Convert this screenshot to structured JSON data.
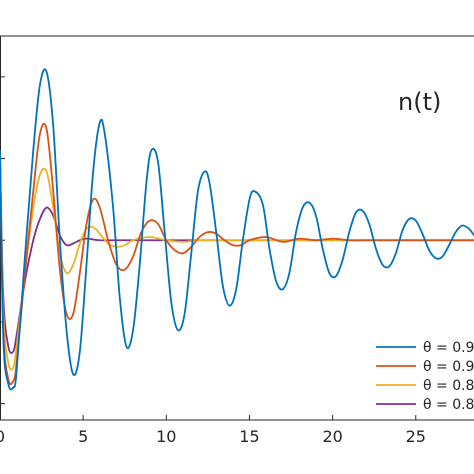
{
  "chart_data": {
    "type": "line",
    "title": "",
    "annotation": "n(t)",
    "xlabel": "",
    "ylabel": "",
    "xlim": [
      0,
      28.5
    ],
    "ylim": [
      -1.1,
      1.25
    ],
    "x_ticks": [
      0,
      5,
      10,
      15,
      20,
      25
    ],
    "x_tick_labels": [
      "0",
      "5",
      "10",
      "15",
      "20",
      "25"
    ],
    "grid": false,
    "legend_placement": "bottom-right",
    "series": [
      {
        "name": "θ = 0.9",
        "color": "#0072BD",
        "x": [
          0,
          0.2,
          0.5,
          0.8,
          1.0,
          1.5,
          2.0,
          2.4,
          2.8,
          3.2,
          3.6,
          4.0,
          4.4,
          4.8,
          5.2,
          5.6,
          6.0,
          6.3,
          6.8,
          7.2,
          7.6,
          8.0,
          8.4,
          8.8,
          9.1,
          9.5,
          9.9,
          10.3,
          10.7,
          11.1,
          11.5,
          11.9,
          12.3,
          12.6,
          13.0,
          13.4,
          13.8,
          14.2,
          14.6,
          15.0,
          15.3,
          15.8,
          16.2,
          16.6,
          17.0,
          17.4,
          17.8,
          18.2,
          18.6,
          19.0,
          19.4,
          19.8,
          20.2,
          20.6,
          21.0,
          21.4,
          21.8,
          22.2,
          22.6,
          23.0,
          23.4,
          23.8,
          24.2,
          24.6,
          25.0,
          25.4,
          25.8,
          26.2,
          26.6,
          27.0,
          27.4,
          27.8,
          28.2,
          28.5
        ],
        "values": [
          0.55,
          -0.6,
          -0.88,
          -0.9,
          -0.8,
          -0.1,
          0.55,
          0.95,
          1.03,
          0.7,
          0.0,
          -0.55,
          -0.82,
          -0.68,
          -0.15,
          0.42,
          0.72,
          0.65,
          0.2,
          -0.35,
          -0.65,
          -0.55,
          -0.15,
          0.35,
          0.55,
          0.48,
          0.05,
          -0.38,
          -0.55,
          -0.45,
          -0.08,
          0.3,
          0.42,
          0.35,
          0.05,
          -0.28,
          -0.4,
          -0.3,
          0.0,
          0.25,
          0.3,
          0.22,
          -0.05,
          -0.25,
          -0.3,
          -0.2,
          0.05,
          0.2,
          0.23,
          0.15,
          -0.05,
          -0.2,
          -0.22,
          -0.12,
          0.05,
          0.17,
          0.18,
          0.1,
          -0.05,
          -0.15,
          -0.16,
          -0.08,
          0.06,
          0.13,
          0.12,
          0.04,
          -0.06,
          -0.11,
          -0.1,
          -0.03,
          0.05,
          0.09,
          0.07,
          0.03
        ]
      },
      {
        "name": "θ = 0.9",
        "color": "#D95319",
        "x": [
          0,
          0.2,
          0.5,
          0.8,
          1.0,
          1.5,
          2.0,
          2.4,
          2.8,
          3.2,
          3.6,
          4.0,
          4.4,
          4.8,
          5.2,
          5.6,
          6.0,
          6.5,
          7.0,
          7.5,
          8.0,
          8.5,
          9.0,
          9.5,
          10.0,
          10.5,
          11.0,
          11.5,
          12.0,
          12.5,
          13.0,
          13.5,
          14.0,
          14.5,
          15.0,
          16.0,
          17.0,
          18.0,
          19.0,
          20.0,
          21.0,
          22.0,
          23.0,
          24.0,
          25.0,
          26.0,
          27.0,
          28.5
        ],
        "values": [
          0.55,
          -0.55,
          -0.85,
          -0.86,
          -0.75,
          -0.2,
          0.3,
          0.65,
          0.68,
          0.3,
          -0.18,
          -0.45,
          -0.45,
          -0.2,
          0.1,
          0.25,
          0.2,
          0.0,
          -0.15,
          -0.18,
          -0.1,
          0.05,
          0.12,
          0.1,
          0.0,
          -0.06,
          -0.08,
          -0.04,
          0.02,
          0.05,
          0.04,
          0.0,
          -0.03,
          -0.03,
          0.0,
          0.02,
          -0.01,
          0.01,
          0.0,
          0.01,
          0.0,
          0.0,
          0.0,
          0.0,
          0.0,
          0.0,
          0.0,
          0.0
        ]
      },
      {
        "name": "θ = 0.8",
        "color": "#EDB120",
        "x": [
          0,
          0.2,
          0.5,
          0.8,
          1.0,
          1.5,
          2.0,
          2.4,
          2.8,
          3.2,
          3.6,
          4.0,
          4.4,
          4.8,
          5.2,
          5.6,
          6.0,
          6.5,
          7.0,
          7.5,
          8.0,
          9.0,
          10.0,
          11.0,
          12.0,
          14.0,
          16.0,
          20.0,
          24.0,
          28.5
        ],
        "values": [
          0.5,
          -0.45,
          -0.75,
          -0.78,
          -0.65,
          -0.2,
          0.2,
          0.4,
          0.42,
          0.2,
          -0.08,
          -0.2,
          -0.15,
          -0.02,
          0.07,
          0.08,
          0.04,
          -0.02,
          -0.04,
          -0.03,
          0.0,
          0.02,
          0.0,
          -0.01,
          0.0,
          0.0,
          0.0,
          0.0,
          0.0,
          0.0
        ]
      },
      {
        "name": "θ = 0.8",
        "color": "#7E2F8E",
        "x": [
          0,
          0.2,
          0.5,
          0.8,
          1.0,
          1.5,
          2.0,
          2.4,
          2.8,
          3.2,
          3.6,
          4.0,
          4.4,
          4.8,
          5.2,
          6.0,
          7.0,
          8.0,
          10.0,
          12.0,
          16.0,
          20.0,
          24.0,
          28.5
        ],
        "values": [
          0.5,
          -0.35,
          -0.65,
          -0.68,
          -0.58,
          -0.25,
          0.0,
          0.13,
          0.2,
          0.15,
          0.03,
          -0.03,
          -0.02,
          0.0,
          0.01,
          0.0,
          0.0,
          0.0,
          0.0,
          0.0,
          0.0,
          0.0,
          0.0,
          0.0
        ]
      }
    ]
  }
}
